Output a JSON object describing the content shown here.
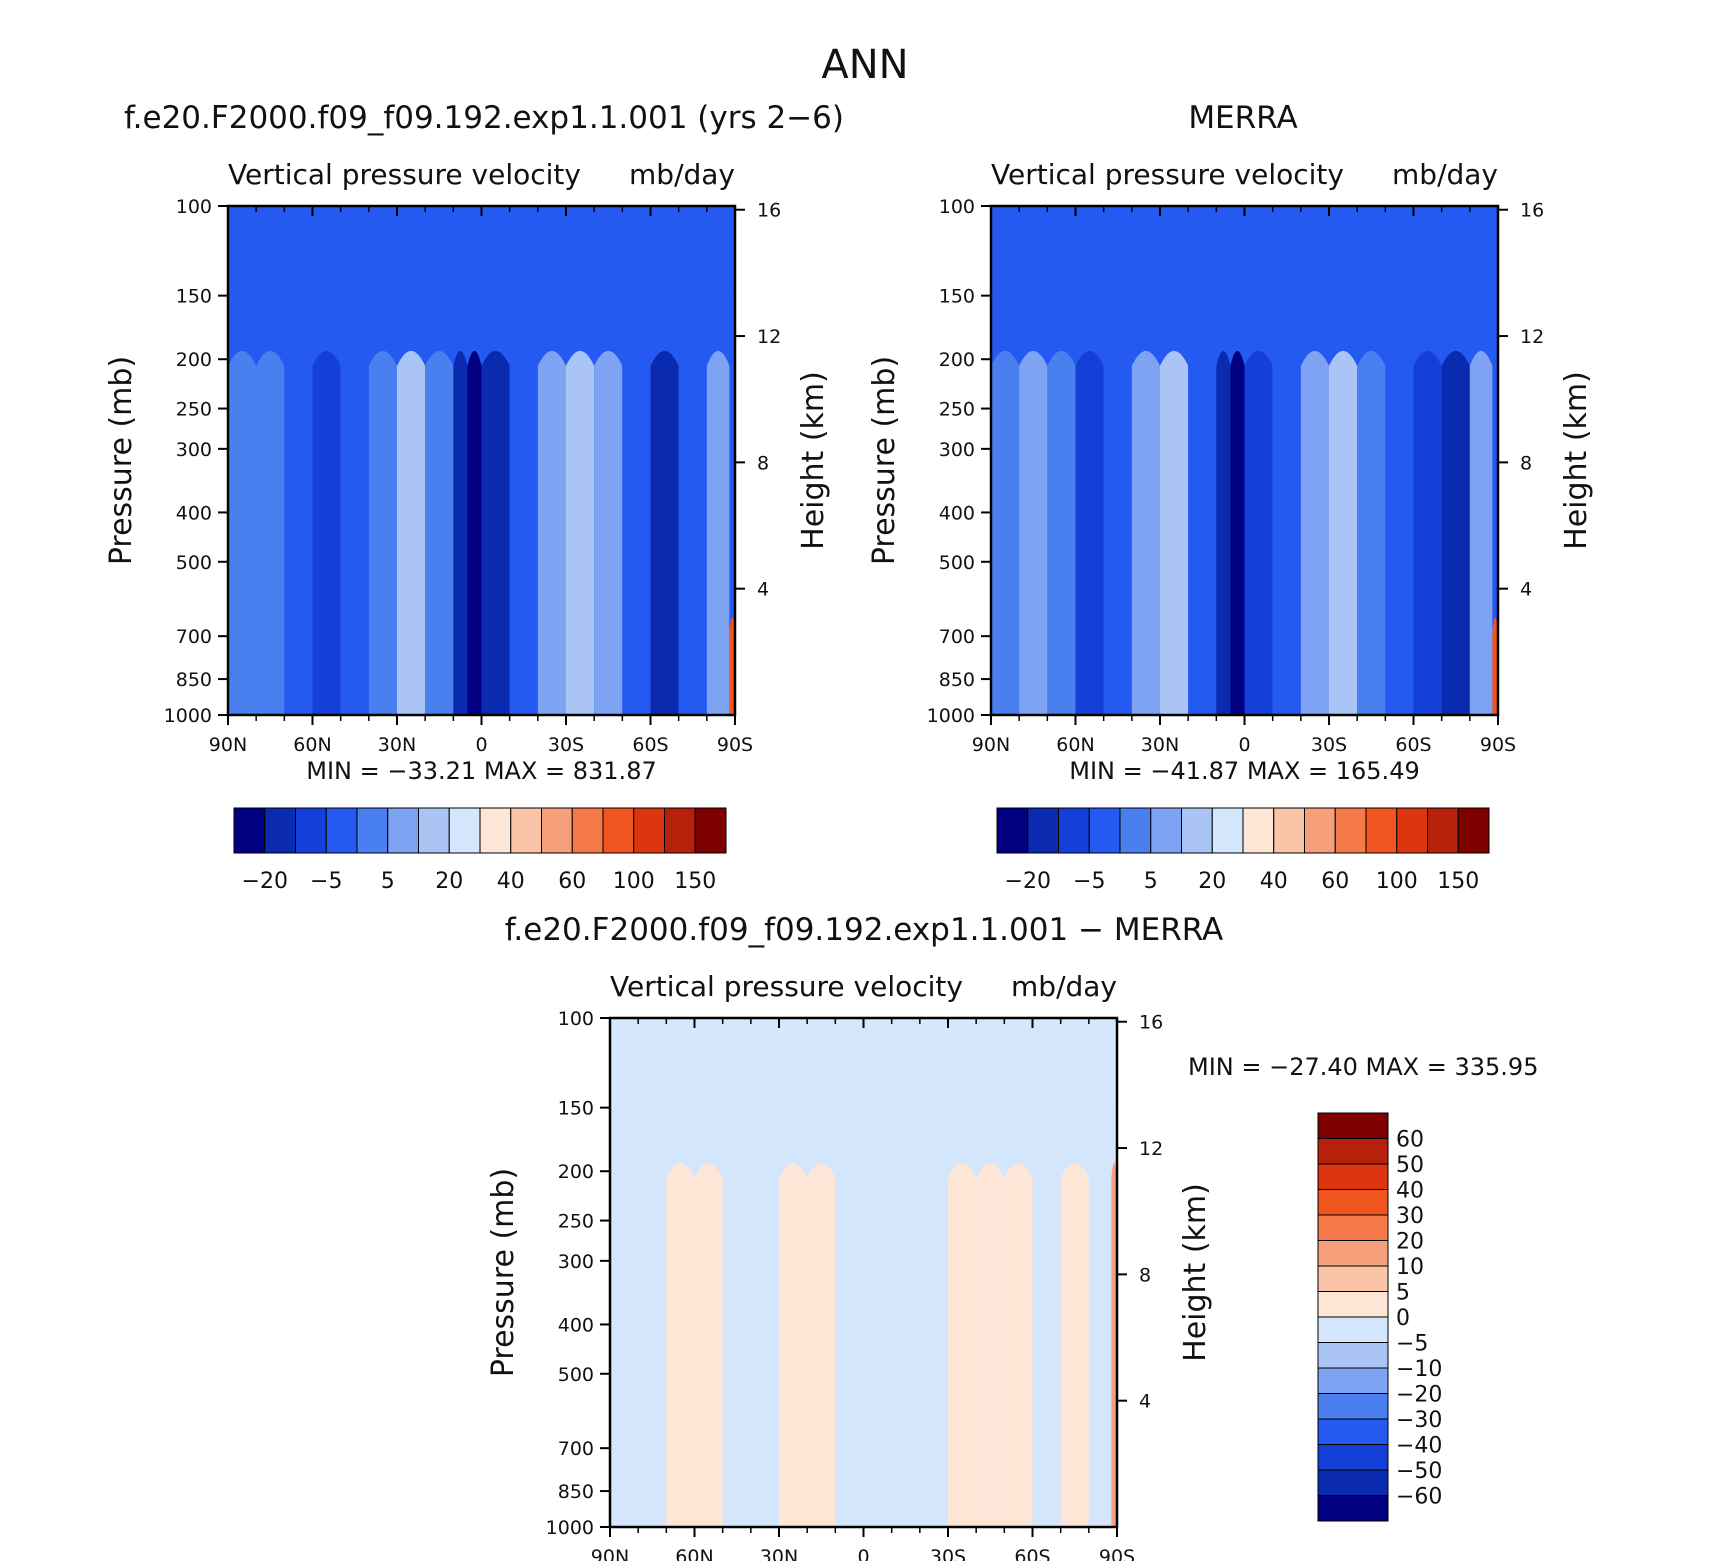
{
  "page_title": "ANN",
  "colors": {
    "frame": "#000000",
    "levels_abs": [
      "#000080",
      "#0a2bb0",
      "#1440d8",
      "#2459f2",
      "#4a7ff0",
      "#7da3f2",
      "#aac5f5",
      "#d4e6fb",
      "#fde6d6",
      "#f9c4a8",
      "#f5a07a",
      "#f47a4a",
      "#f0541f",
      "#dd3510",
      "#b5210a",
      "#7e0000"
    ],
    "levels_diff": [
      "#000080",
      "#0a2bb0",
      "#1440d8",
      "#2459f2",
      "#4a7ff0",
      "#7da3f2",
      "#aac5f5",
      "#d4e6fb",
      "#fde6d6",
      "#f9c4a8",
      "#f5a07a",
      "#f47a4a",
      "#f0541f",
      "#dd3510",
      "#b5210a",
      "#7e0000"
    ]
  },
  "chart_data": [
    {
      "type": "heatmap",
      "id": "model",
      "title": "f.e20.F2000.f09_f09.192.exp1.1.001 (yrs 2−6)",
      "subtitle_left": "Vertical pressure velocity",
      "subtitle_right": "mb/day",
      "ylabel": "Pressure (mb)",
      "ylabel_right": "Height (km)",
      "x_ticks": [
        "90N",
        "60N",
        "30N",
        "0",
        "30S",
        "60S",
        "90S"
      ],
      "x_range": [
        90,
        -90
      ],
      "y_ticks": [
        100,
        150,
        200,
        250,
        300,
        400,
        500,
        700,
        850,
        1000
      ],
      "y_range": [
        100,
        1000
      ],
      "height_ticks": [
        16,
        12,
        8,
        4
      ],
      "stats": "MIN = −33.21   MAX = 831.87",
      "colorbar_labels": [
        "−20",
        "−5",
        "5",
        "20",
        "40",
        "60",
        "100",
        "150"
      ],
      "columns": [
        {
          "lat": 90,
          "level": 4
        },
        {
          "lat": 80,
          "level": 4
        },
        {
          "lat": 70,
          "level": 3
        },
        {
          "lat": 60,
          "level": 2
        },
        {
          "lat": 50,
          "level": 3
        },
        {
          "lat": 40,
          "level": 4
        },
        {
          "lat": 30,
          "level": 6
        },
        {
          "lat": 20,
          "level": 4
        },
        {
          "lat": 10,
          "level": 1
        },
        {
          "lat": 5,
          "level": 0
        },
        {
          "lat": 0,
          "level": 1
        },
        {
          "lat": -10,
          "level": 3
        },
        {
          "lat": -20,
          "level": 5
        },
        {
          "lat": -30,
          "level": 6
        },
        {
          "lat": -40,
          "level": 5
        },
        {
          "lat": -50,
          "level": 3
        },
        {
          "lat": -60,
          "level": 1
        },
        {
          "lat": -70,
          "level": 3
        },
        {
          "lat": -80,
          "level": 5
        },
        {
          "lat": -88,
          "level": 12
        }
      ]
    },
    {
      "type": "heatmap",
      "id": "obs",
      "title": "MERRA",
      "subtitle_left": "Vertical pressure velocity",
      "subtitle_right": "mb/day",
      "ylabel": "Pressure (mb)",
      "ylabel_right": "Height (km)",
      "x_ticks": [
        "90N",
        "60N",
        "30N",
        "0",
        "30S",
        "60S",
        "90S"
      ],
      "x_range": [
        90,
        -90
      ],
      "y_ticks": [
        100,
        150,
        200,
        250,
        300,
        400,
        500,
        700,
        850,
        1000
      ],
      "y_range": [
        100,
        1000
      ],
      "height_ticks": [
        16,
        12,
        8,
        4
      ],
      "stats": "MIN = −41.87   MAX = 165.49",
      "colorbar_labels": [
        "−20",
        "−5",
        "5",
        "20",
        "40",
        "60",
        "100",
        "150"
      ],
      "columns": [
        {
          "lat": 90,
          "level": 4
        },
        {
          "lat": 80,
          "level": 5
        },
        {
          "lat": 70,
          "level": 4
        },
        {
          "lat": 60,
          "level": 2
        },
        {
          "lat": 50,
          "level": 3
        },
        {
          "lat": 40,
          "level": 5
        },
        {
          "lat": 30,
          "level": 6
        },
        {
          "lat": 20,
          "level": 3
        },
        {
          "lat": 10,
          "level": 1
        },
        {
          "lat": 5,
          "level": 0
        },
        {
          "lat": 0,
          "level": 2
        },
        {
          "lat": -10,
          "level": 3
        },
        {
          "lat": -20,
          "level": 5
        },
        {
          "lat": -30,
          "level": 6
        },
        {
          "lat": -40,
          "level": 4
        },
        {
          "lat": -50,
          "level": 3
        },
        {
          "lat": -60,
          "level": 2
        },
        {
          "lat": -70,
          "level": 1
        },
        {
          "lat": -80,
          "level": 5
        },
        {
          "lat": -88,
          "level": 12
        }
      ]
    },
    {
      "type": "heatmap",
      "id": "diff",
      "title": "f.e20.F2000.f09_f09.192.exp1.1.001 − MERRA",
      "subtitle_left": "Vertical pressure velocity",
      "subtitle_right": "mb/day",
      "ylabel": "Pressure (mb)",
      "ylabel_right": "Height (km)",
      "x_ticks": [
        "90N",
        "60N",
        "30N",
        "0",
        "30S",
        "60S",
        "90S"
      ],
      "x_range": [
        90,
        -90
      ],
      "y_ticks": [
        100,
        150,
        200,
        250,
        300,
        400,
        500,
        700,
        850,
        1000
      ],
      "y_range": [
        100,
        1000
      ],
      "height_ticks": [
        16,
        12,
        8,
        4
      ],
      "stats": "MIN = −27.40   MAX = 335.95",
      "colorbar_labels": [
        "60",
        "50",
        "40",
        "30",
        "20",
        "10",
        "5",
        "0",
        "−5",
        "−10",
        "−20",
        "−30",
        "−40",
        "−50",
        "−60"
      ],
      "columns": [
        {
          "lat": 90,
          "level": 7
        },
        {
          "lat": 80,
          "level": 7
        },
        {
          "lat": 70,
          "level": 8
        },
        {
          "lat": 60,
          "level": 8
        },
        {
          "lat": 50,
          "level": 7
        },
        {
          "lat": 40,
          "level": 7
        },
        {
          "lat": 30,
          "level": 8
        },
        {
          "lat": 20,
          "level": 8
        },
        {
          "lat": 10,
          "level": 7
        },
        {
          "lat": 0,
          "level": 7
        },
        {
          "lat": -10,
          "level": 7
        },
        {
          "lat": -20,
          "level": 7
        },
        {
          "lat": -30,
          "level": 8
        },
        {
          "lat": -40,
          "level": 8
        },
        {
          "lat": -50,
          "level": 8
        },
        {
          "lat": -60,
          "level": 7
        },
        {
          "lat": -70,
          "level": 8
        },
        {
          "lat": -80,
          "level": 7
        },
        {
          "lat": -88,
          "level": 10
        }
      ]
    }
  ]
}
